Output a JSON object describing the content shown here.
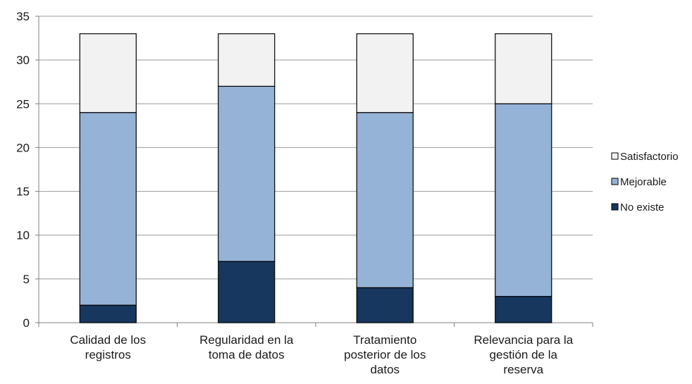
{
  "chart_data": {
    "type": "bar",
    "stacked": true,
    "categories": [
      [
        "Calidad de los",
        "registros"
      ],
      [
        "Regularidad en la",
        "toma de datos"
      ],
      [
        "Tratamiento",
        "posterior de los",
        "datos"
      ],
      [
        "Relevancia para la",
        "gestión de la",
        "reserva"
      ]
    ],
    "series": [
      {
        "name": "No existe",
        "color": "#17375e",
        "values": [
          2,
          7,
          4,
          3
        ]
      },
      {
        "name": "Mejorable",
        "color": "#95b3d7",
        "values": [
          22,
          20,
          20,
          22
        ]
      },
      {
        "name": "Satisfactorio",
        "color": "#f2f2f2",
        "values": [
          9,
          6,
          9,
          8
        ]
      }
    ],
    "legend_order": [
      "Satisfactorio",
      "Mejorable",
      "No existe"
    ],
    "legend_position": "right",
    "ylim": [
      0,
      35
    ],
    "yticks": [
      0,
      5,
      10,
      15,
      20,
      25,
      30,
      35
    ],
    "grid": true,
    "title": "",
    "xlabel": "",
    "ylabel": ""
  }
}
